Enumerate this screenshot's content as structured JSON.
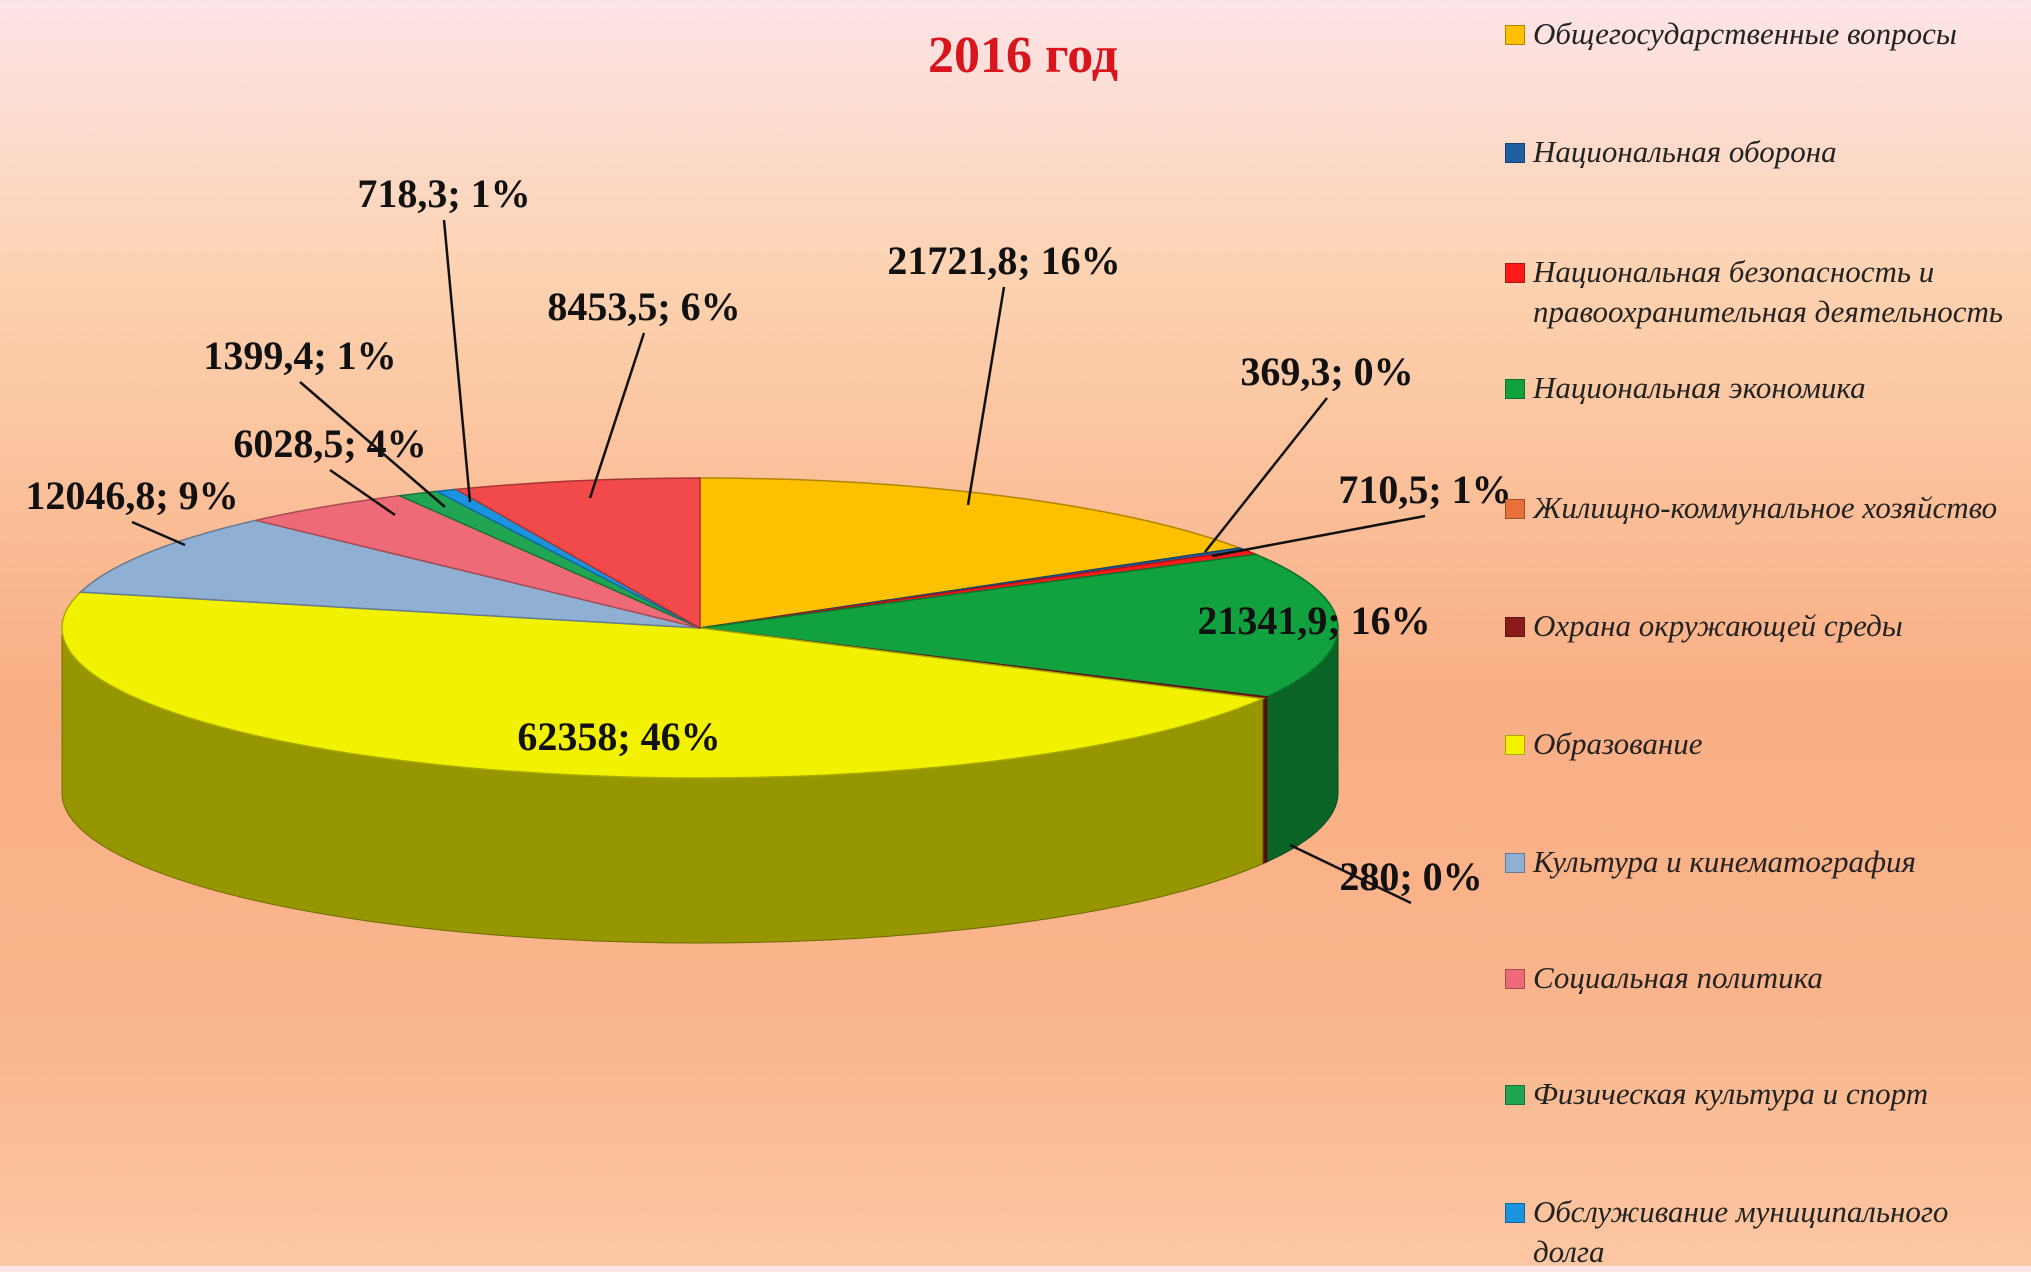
{
  "chart_data": {
    "type": "pie3d",
    "title": "2016 год",
    "categories": [
      "Общегосударственные вопросы",
      "Национальная оборона",
      "Национальная безопасность и правоохранительная деятельность",
      "Национальная экономика",
      "Жилищно-коммунальное хозяйство",
      "Охрана окружающей среды",
      "Образование",
      "Культура и кинематография",
      "Социальная политика",
      "Физическая культура и спорт",
      "Обслуживание муниципального долга",
      null
    ],
    "values": [
      21721.8,
      369.3,
      710.5,
      21341.9,
      null,
      280,
      62358,
      12046.8,
      6028.5,
      1399.4,
      718.3,
      8453.5
    ],
    "value_labels": [
      "21721,8; 16%",
      "369,3; 0%",
      "710,5; 1%",
      "21341,9; 16%",
      null,
      "280; 0%",
      "62358; 46%",
      "12046,8; 9%",
      "6028,5; 4%",
      "1399,4; 1%",
      "718,3; 1%",
      "8453,5; 6%"
    ],
    "colors": [
      "#ffc000",
      "#1f5f9f",
      "#ff1a1a",
      "#11a13f",
      "#e8703a",
      "#8b1a1a",
      "#f2f200",
      "#8fb0d2",
      "#ef6a78",
      "#22a552",
      "#1a93e0",
      "#f24a4a"
    ],
    "legend": "right"
  }
}
